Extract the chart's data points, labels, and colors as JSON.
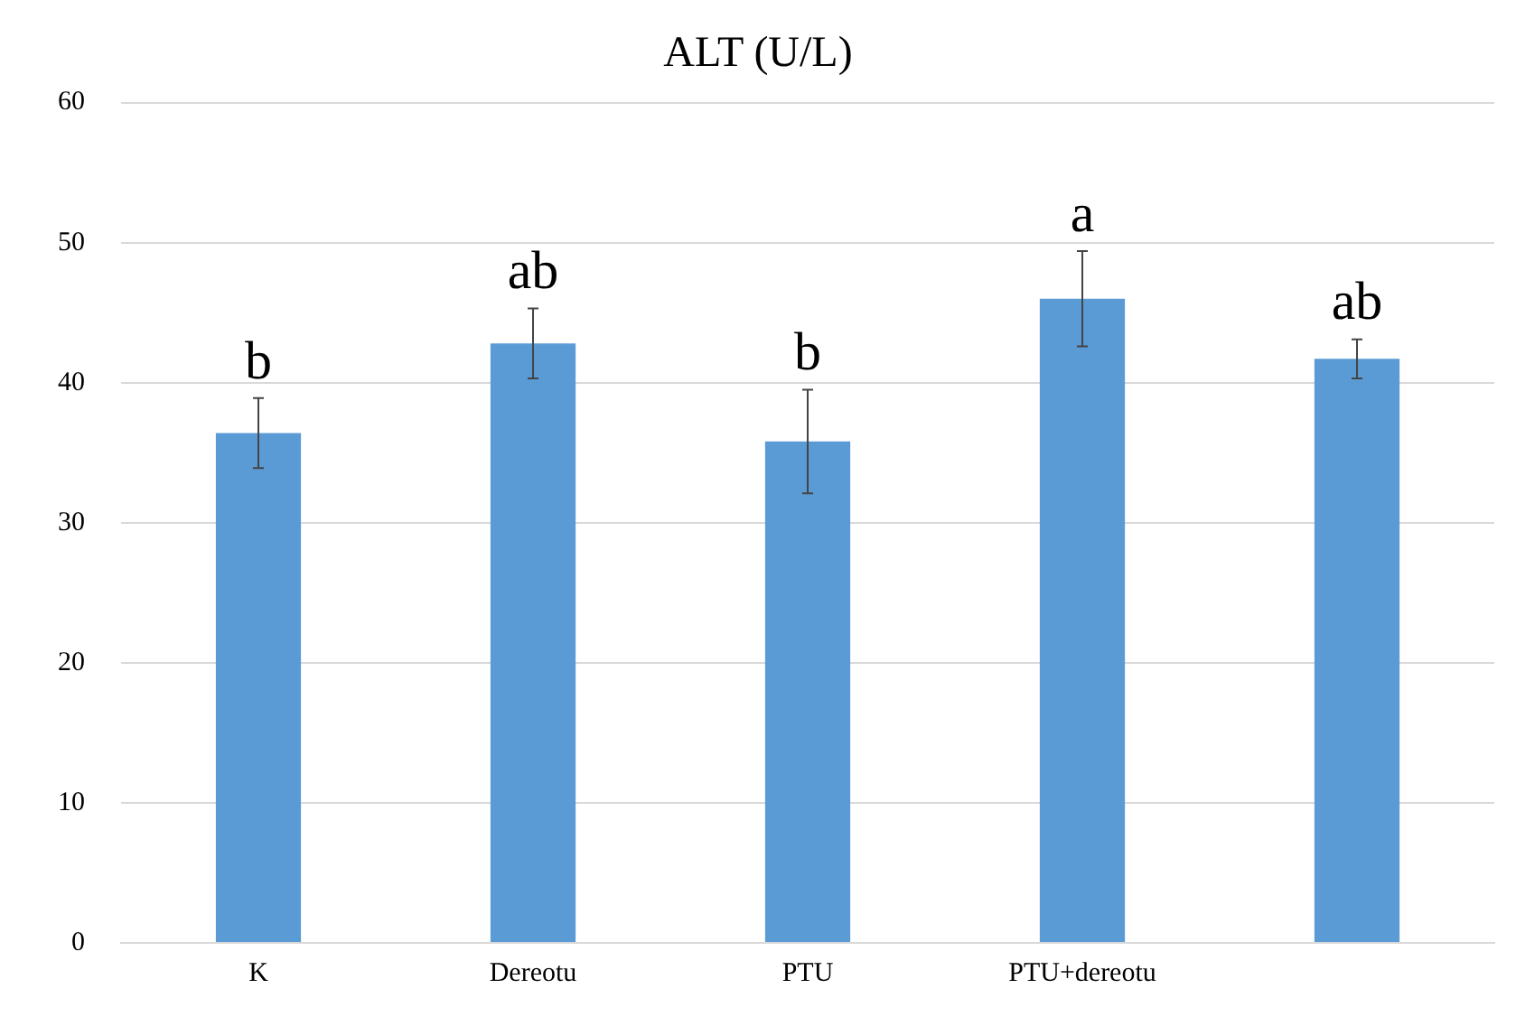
{
  "chart_data": {
    "type": "bar",
    "title": "ALT (U/L)",
    "categories": [
      "K",
      "Dereotu",
      "PTU",
      "PTU+dereotu",
      null
    ],
    "values": [
      36.4,
      42.8,
      35.8,
      46.0,
      41.7
    ],
    "errors": [
      2.5,
      2.5,
      3.7,
      3.4,
      1.4
    ],
    "value_labels": [
      "b",
      "ab",
      "b",
      "a",
      "ab"
    ],
    "color": "#5b9bd5",
    "ylim": [
      0,
      60
    ],
    "yticks": [
      0,
      10,
      20,
      30,
      40,
      50,
      60
    ],
    "grid": "y",
    "legend": false
  }
}
